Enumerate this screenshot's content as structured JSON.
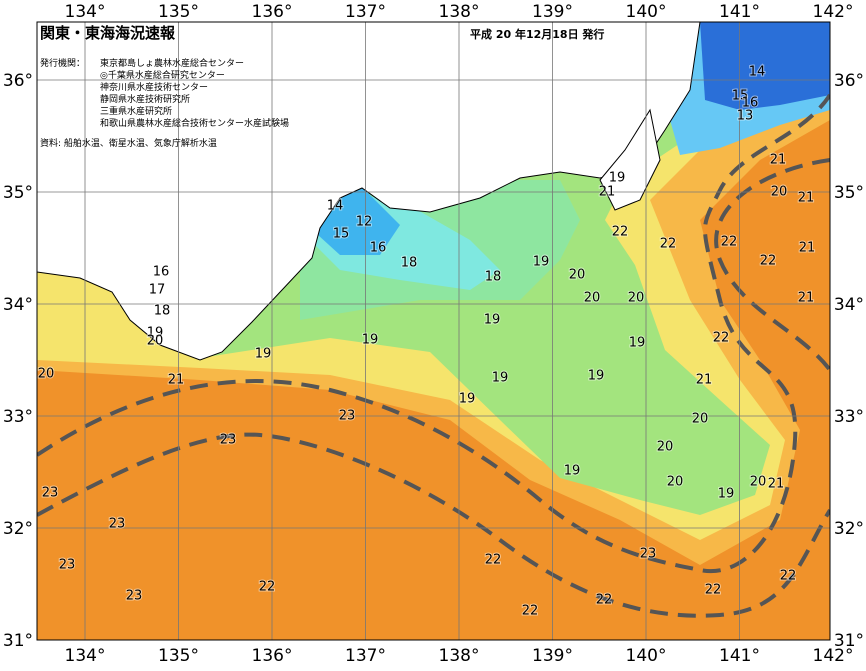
{
  "map": {
    "title": "関東・東海海況速報",
    "issue_date": "平成 20 年12月18日 発行",
    "issuer_label": "発行機関：",
    "issuers": [
      "東京都島しょ農林水産総合センター",
      "◎千葉県水産総合研究センター",
      "神奈川県水産技術センター",
      "静岡県水産技術研究所",
      "三重県水産研究所",
      "和歌山県農林水産総合技術センター水産試験場"
    ],
    "source": "資料: 船舶水温、衛星水温、気象庁解析水温",
    "lon_labels": [
      "134°",
      "135°",
      "136°",
      "137°",
      "138°",
      "139°",
      "140°",
      "141°",
      "142°"
    ],
    "lat_labels": [
      "36°",
      "35°",
      "34°",
      "33°",
      "32°",
      "31°"
    ],
    "contour_labels": [
      "14",
      "15",
      "16",
      "13",
      "21",
      "21",
      "19",
      "20",
      "21",
      "22",
      "22",
      "22",
      "21",
      "22",
      "21",
      "20",
      "20",
      "20",
      "19",
      "18",
      "18",
      "16",
      "15",
      "14",
      "12",
      "19",
      "22",
      "19",
      "19",
      "19",
      "21",
      "19",
      "19",
      "20",
      "20",
      "19",
      "20",
      "19",
      "20",
      "21",
      "16",
      "17",
      "18",
      "19",
      "20",
      "19",
      "20",
      "21",
      "23",
      "23",
      "23",
      "23",
      "23",
      "22",
      "23",
      "22",
      "23",
      "22",
      "22",
      "22",
      "22"
    ]
  }
}
